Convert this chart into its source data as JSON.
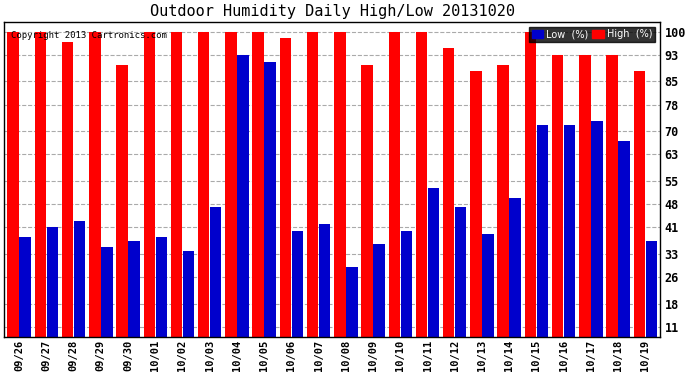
{
  "title": "Outdoor Humidity Daily High/Low 20131020",
  "copyright": "Copyright 2013 Cartronics.com",
  "categories": [
    "09/26",
    "09/27",
    "09/28",
    "09/29",
    "09/30",
    "10/01",
    "10/02",
    "10/03",
    "10/04",
    "10/05",
    "10/06",
    "10/07",
    "10/08",
    "10/09",
    "10/10",
    "10/11",
    "10/12",
    "10/13",
    "10/14",
    "10/15",
    "10/16",
    "10/17",
    "10/18",
    "10/19"
  ],
  "high_values": [
    100,
    100,
    97,
    100,
    90,
    100,
    100,
    100,
    100,
    100,
    98,
    100,
    100,
    90,
    100,
    100,
    95,
    88,
    90,
    100,
    93,
    93,
    93,
    88
  ],
  "low_values": [
    38,
    41,
    43,
    35,
    37,
    38,
    34,
    47,
    93,
    91,
    40,
    42,
    29,
    36,
    40,
    53,
    47,
    39,
    50,
    72,
    72,
    73,
    67,
    37
  ],
  "high_color": "#ff0000",
  "low_color": "#0000cc",
  "bg_color": "#ffffff",
  "grid_color": "#aaaaaa",
  "yticks": [
    11,
    18,
    26,
    33,
    41,
    48,
    55,
    63,
    70,
    78,
    85,
    93,
    100
  ],
  "ylim": [
    8,
    103
  ],
  "bar_width": 0.42,
  "bar_gap": 0.02
}
